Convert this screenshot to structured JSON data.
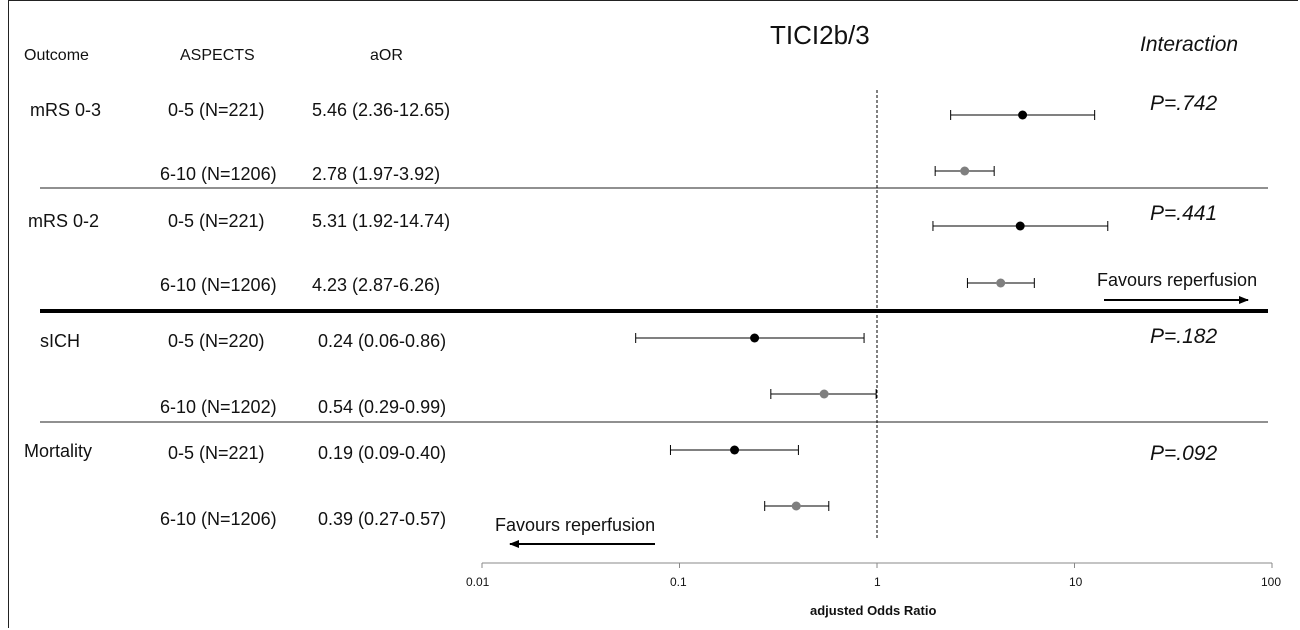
{
  "headers": {
    "outcome": "Outcome",
    "aspects": "ASPECTS",
    "aor": "aOR"
  },
  "interaction_label": "Interaction",
  "chart_data": {
    "type": "forest",
    "title": "TICI2b/3",
    "xlabel": "adjusted Odds Ratio",
    "xscale": "log",
    "xlim": [
      0.01,
      100
    ],
    "x_ticks": [
      "0.01",
      "0.1",
      "1",
      "10",
      "100"
    ],
    "reference_line": 1,
    "annotations": {
      "favours_right": "Favours reperfusion",
      "favours_left": "Favours reperfusion"
    },
    "groups": [
      {
        "outcome": "mRS 0-3",
        "interaction_p": "P=.742",
        "rows": [
          {
            "aspects": "0-5 (N=221)",
            "aor_text": "5.46 (2.36-12.65)",
            "or": 5.46,
            "lo": 2.36,
            "hi": 12.65,
            "color": "#000000"
          },
          {
            "aspects": "6-10 (N=1206)",
            "aor_text": "2.78 (1.97-3.92)",
            "or": 2.78,
            "lo": 1.97,
            "hi": 3.92,
            "color": "#7f7f7f"
          }
        ]
      },
      {
        "outcome": "mRS 0-2",
        "interaction_p": "P=.441",
        "rows": [
          {
            "aspects": "0-5 (N=221)",
            "aor_text": "5.31 (1.92-14.74)",
            "or": 5.31,
            "lo": 1.92,
            "hi": 14.74,
            "color": "#000000"
          },
          {
            "aspects": "6-10 (N=1206)",
            "aor_text": "4.23 (2.87-6.26)",
            "or": 4.23,
            "lo": 2.87,
            "hi": 6.26,
            "color": "#7f7f7f"
          }
        ]
      },
      {
        "outcome": "sICH",
        "interaction_p": "P=.182",
        "rows": [
          {
            "aspects": "0-5 (N=220)",
            "aor_text": "0.24 (0.06-0.86)",
            "or": 0.24,
            "lo": 0.06,
            "hi": 0.86,
            "color": "#000000"
          },
          {
            "aspects": "6-10 (N=1202)",
            "aor_text": "0.54 (0.29-0.99)",
            "or": 0.54,
            "lo": 0.29,
            "hi": 0.99,
            "color": "#7f7f7f"
          }
        ]
      },
      {
        "outcome": "Mortality",
        "interaction_p": "P=.092",
        "rows": [
          {
            "aspects": "0-5 (N=221)",
            "aor_text": "0.19 (0.09-0.40)",
            "or": 0.19,
            "lo": 0.09,
            "hi": 0.4,
            "color": "#000000"
          },
          {
            "aspects": "6-10 (N=1206)",
            "aor_text": "0.39 (0.27-0.57)",
            "or": 0.39,
            "lo": 0.27,
            "hi": 0.57,
            "color": "#7f7f7f"
          }
        ]
      }
    ]
  }
}
